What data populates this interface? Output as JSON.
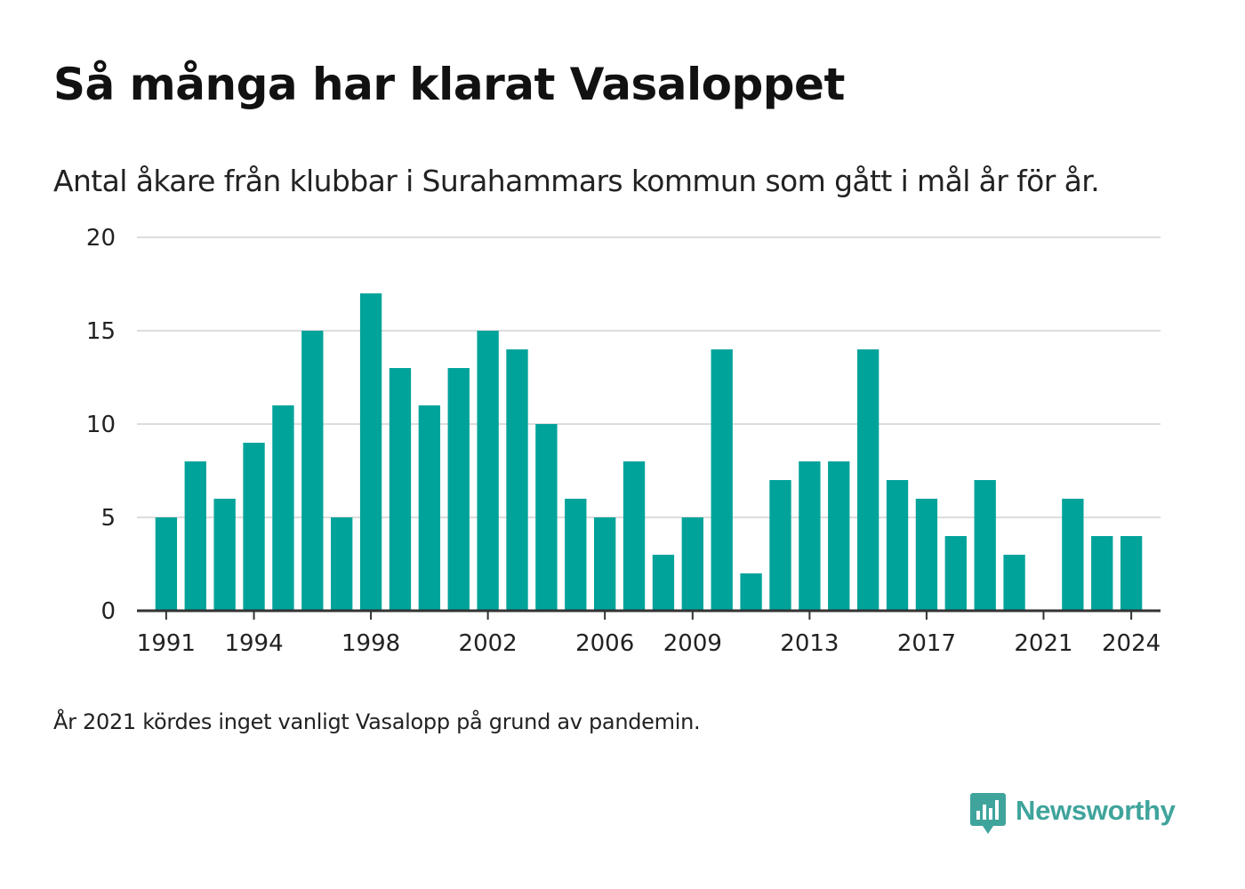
{
  "header": {
    "title": "Så många har klarat Vasaloppet",
    "subtitle": "Antal åkare från klubbar i Surahammars kommun som gått i mål år för år."
  },
  "footer": {
    "note": "År 2021 kördes inget vanligt Vasalopp på grund av pandemin.",
    "brand": "Newsworthy",
    "brand_icon": "newsworthy-chart-bubble-icon"
  },
  "colors": {
    "bar": "#00a39a",
    "brand": "#3fa49c",
    "grid": "#dddddd",
    "axis": "#333333",
    "text": "#222222"
  },
  "chart_data": {
    "type": "bar",
    "x": [
      1991,
      1992,
      1993,
      1994,
      1995,
      1996,
      1997,
      1998,
      1999,
      2000,
      2001,
      2002,
      2003,
      2004,
      2005,
      2006,
      2007,
      2008,
      2009,
      2010,
      2011,
      2012,
      2013,
      2014,
      2015,
      2016,
      2017,
      2018,
      2019,
      2020,
      2021,
      2022,
      2023,
      2024
    ],
    "values": [
      5,
      8,
      6,
      9,
      11,
      15,
      5,
      17,
      13,
      11,
      13,
      15,
      14,
      10,
      6,
      5,
      8,
      3,
      5,
      14,
      2,
      7,
      8,
      8,
      14,
      7,
      6,
      4,
      7,
      3,
      0,
      6,
      4,
      4
    ],
    "xticks": [
      1991,
      1994,
      1998,
      2002,
      2006,
      2009,
      2013,
      2017,
      2021,
      2024
    ],
    "yticks": [
      0,
      5,
      10,
      15,
      20
    ],
    "ylim": [
      0,
      20
    ],
    "xlim": [
      1990,
      2025
    ],
    "grid": true,
    "legend": "none"
  }
}
